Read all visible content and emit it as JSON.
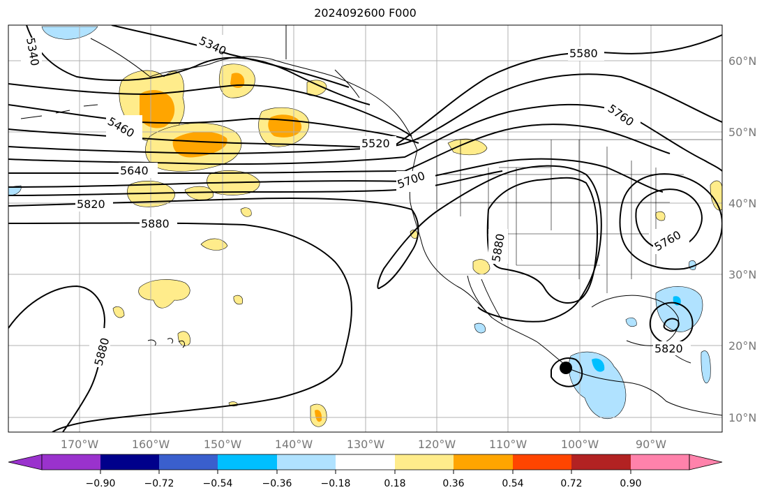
{
  "title": "2024092600 F000",
  "map": {
    "lat_labels": [
      "60°N",
      "50°N",
      "40°N",
      "30°N",
      "20°N",
      "10°N"
    ],
    "lon_labels": [
      "170°W",
      "160°W",
      "150°W",
      "140°W",
      "130°W",
      "120°W",
      "110°W",
      "100°W",
      "90°W"
    ],
    "contour_labels": [
      "5340",
      "5340",
      "5460",
      "5520",
      "5580",
      "5640",
      "5700",
      "5760",
      "5760",
      "5820",
      "5820",
      "5880",
      "5880",
      "5880"
    ],
    "contour_color": "#000000",
    "grid_color": "#b0b0b0"
  },
  "colorbar": {
    "colors": [
      "#9a32cd",
      "#00008b",
      "#3a5fcd",
      "#00bfff",
      "#b0e2ff",
      "#ffffff",
      "#ffec8b",
      "#ffa500",
      "#ff4500",
      "#b22222",
      "#ff82ab"
    ],
    "tick_labels": [
      "−0.90",
      "−0.72",
      "−0.54",
      "−0.36",
      "−0.18",
      "0.18",
      "0.36",
      "0.54",
      "0.72",
      "0.90"
    ]
  }
}
